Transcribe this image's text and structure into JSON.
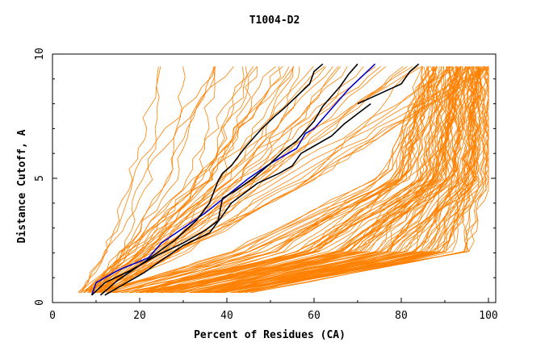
{
  "chart_data": {
    "type": "line",
    "title": "T1004-D2",
    "xlabel": "Percent of Residues (CA)",
    "ylabel": "Distance Cutoff, A",
    "xlim": [
      0,
      100
    ],
    "ylim": [
      0,
      10
    ],
    "x_ticks": [
      "0",
      "20",
      "40",
      "60",
      "80",
      "100"
    ],
    "y_ticks": [
      "0",
      "5",
      "10"
    ],
    "grid": false,
    "legend": "none",
    "colors": {
      "models": "#ff8000",
      "highlight_black": "#000000",
      "highlight_blue": "#0000cc",
      "axes": "#000000"
    },
    "background_models": {
      "count": 150,
      "note_values": "approximate envelope of orange GDT curves",
      "upper_group": {
        "count": 45,
        "x_at_y_0.4": [
          6,
          12
        ],
        "x_at_y_2": [
          12,
          30
        ],
        "x_at_y_5": [
          18,
          60
        ],
        "x_at_y_9.5": [
          20,
          100
        ]
      },
      "lower_group": {
        "count": 105,
        "x_at_y_0.4": [
          8,
          45
        ],
        "x_at_y_2": [
          40,
          95
        ],
        "x_at_y_5": [
          75,
          100
        ],
        "x_at_y_9.5": [
          85,
          100
        ]
      }
    },
    "series": [
      {
        "color": "#0000cc",
        "x": [
          9,
          10,
          15,
          22,
          25,
          30,
          35,
          40,
          45,
          50,
          56,
          58,
          60,
          63,
          66,
          68,
          71,
          74
        ],
        "y": [
          0.3,
          0.8,
          1.3,
          1.8,
          2.4,
          3.0,
          3.6,
          4.3,
          5.0,
          5.6,
          6.2,
          6.8,
          7.0,
          7.6,
          8.2,
          8.6,
          9.1,
          9.6
        ]
      },
      {
        "color": "#000000",
        "x": [
          9,
          12,
          18,
          24,
          30,
          35,
          38,
          39,
          42,
          46,
          50,
          53,
          56,
          58,
          60,
          62,
          64,
          66,
          68,
          70
        ],
        "y": [
          0.3,
          0.8,
          1.3,
          1.9,
          2.4,
          2.9,
          3.3,
          4.2,
          4.5,
          5.0,
          5.6,
          6.1,
          6.5,
          6.9,
          7.3,
          7.9,
          8.3,
          8.7,
          9.2,
          9.6
        ]
      },
      {
        "color": "#000000",
        "x": [
          12,
          16,
          21,
          25,
          30,
          36,
          39,
          41,
          44,
          47,
          52,
          55,
          57,
          60,
          64,
          67,
          70,
          73
        ],
        "y": [
          0.3,
          0.7,
          1.2,
          1.7,
          2.3,
          2.8,
          3.5,
          4.0,
          4.4,
          4.8,
          5.2,
          5.5,
          6.0,
          6.3,
          6.7,
          7.2,
          7.6,
          8.0
        ]
      },
      {
        "color": "#000000",
        "x": [
          70,
          75,
          80,
          82,
          84
        ],
        "y": [
          8.0,
          8.4,
          8.8,
          9.3,
          9.6
        ]
      },
      {
        "color": "#000000",
        "x": [
          11,
          15,
          20,
          24,
          28,
          33,
          36,
          38,
          39,
          41,
          44,
          48,
          51,
          53,
          56,
          59,
          60,
          62
        ],
        "y": [
          0.3,
          0.9,
          1.5,
          2.0,
          2.5,
          3.3,
          4.0,
          4.9,
          5.2,
          5.5,
          6.2,
          7.0,
          7.5,
          7.8,
          8.3,
          8.8,
          9.3,
          9.6
        ]
      }
    ]
  }
}
